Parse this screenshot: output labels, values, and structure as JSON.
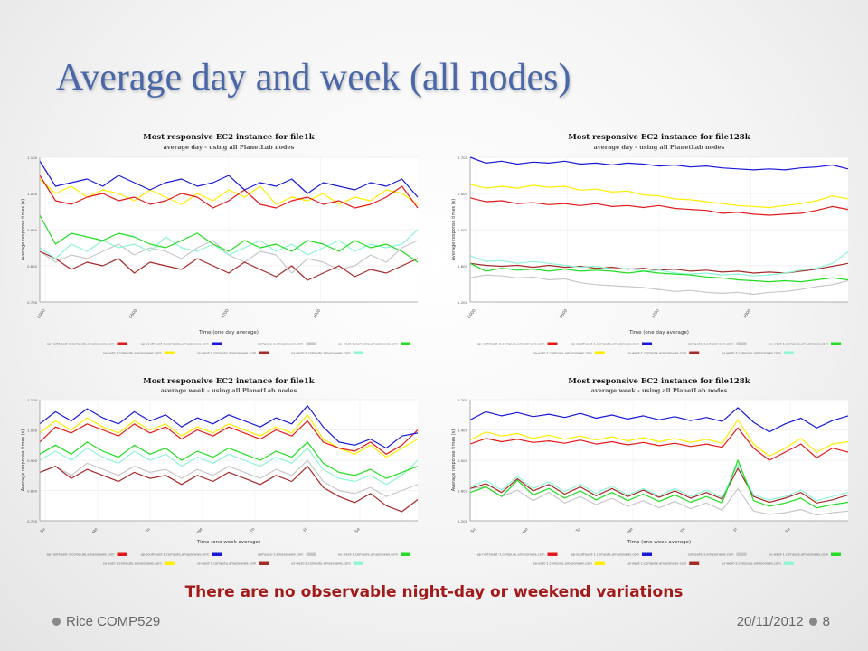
{
  "slide": {
    "title": "Average day and week (all nodes)",
    "note": "There are no observable night-day or weekend variations",
    "footer_left": "Rice COMP529",
    "footer_date": "20/11/2012",
    "page_number": "8"
  },
  "colors": {
    "title": "#4a67a8",
    "note": "#a31a1a",
    "series": [
      "#e31a1c",
      "#1a1ad6",
      "#c8c8c8",
      "#22dd22",
      "#ffee00",
      "#a52a2a",
      "#8ff5d6"
    ]
  },
  "chart_data": [
    {
      "type": "line",
      "title": "Most responsive EC2 instance for file1k",
      "subtitle": "average day - using all PlanetLab nodes",
      "xlabel": "Time (one day average)",
      "ylabel": "Average response times (s)",
      "ylim": [
        0.7,
        1.1
      ],
      "yticks": [
        "1.100",
        "1.000",
        "0.900",
        "0.800",
        "0.700"
      ],
      "xticks": [
        "0000",
        "0600",
        "1200",
        "1800"
      ],
      "grid": true,
      "legend_position": "bottom",
      "series": [
        {
          "name": "ap-northeast-1.compute.amazonaws.com",
          "color": "#e31a1c",
          "values": [
            1.05,
            0.98,
            0.97,
            0.99,
            1.0,
            0.98,
            0.99,
            0.97,
            0.98,
            1.0,
            0.99,
            0.96,
            0.98,
            1.01,
            0.97,
            0.96,
            0.98,
            0.99,
            0.97,
            0.98,
            0.96,
            0.97,
            0.99,
            1.02,
            0.96
          ]
        },
        {
          "name": "ap-southeast-1.compute.amazonaws.com",
          "color": "#1a1ad6",
          "values": [
            1.09,
            1.02,
            1.03,
            1.04,
            1.02,
            1.05,
            1.03,
            1.01,
            1.03,
            1.04,
            1.02,
            1.03,
            1.05,
            1.01,
            1.03,
            1.02,
            1.04,
            1.0,
            1.03,
            1.02,
            1.01,
            1.03,
            1.02,
            1.04,
            0.99
          ]
        },
        {
          "name": "compute-1.amazonaws.com",
          "color": "#c8c8c8",
          "values": [
            0.84,
            0.81,
            0.83,
            0.82,
            0.84,
            0.86,
            0.83,
            0.85,
            0.84,
            0.82,
            0.85,
            0.87,
            0.83,
            0.81,
            0.84,
            0.83,
            0.78,
            0.82,
            0.81,
            0.79,
            0.8,
            0.83,
            0.81,
            0.85,
            0.87
          ]
        },
        {
          "name": "eu-west-1.compute.amazonaws.com",
          "color": "#22dd22",
          "values": [
            0.94,
            0.86,
            0.89,
            0.88,
            0.87,
            0.89,
            0.88,
            0.86,
            0.85,
            0.87,
            0.89,
            0.86,
            0.84,
            0.87,
            0.85,
            0.86,
            0.84,
            0.87,
            0.86,
            0.84,
            0.87,
            0.85,
            0.86,
            0.84,
            0.81
          ]
        },
        {
          "name": "sa-east-1.compute.amazonaws.com",
          "color": "#ffee00",
          "values": [
            1.04,
            1.0,
            1.02,
            0.99,
            1.01,
            1.0,
            0.98,
            1.01,
            0.99,
            0.97,
            1.0,
            0.98,
            1.01,
            0.99,
            1.02,
            0.97,
            0.99,
            0.98,
            1.0,
            0.97,
            0.99,
            0.98,
            1.01,
            1.0,
            0.97
          ]
        },
        {
          "name": "us-west-1.compute.amazonaws.com",
          "color": "#a52a2a",
          "values": [
            0.84,
            0.82,
            0.79,
            0.81,
            0.8,
            0.82,
            0.78,
            0.81,
            0.8,
            0.79,
            0.82,
            0.8,
            0.78,
            0.81,
            0.79,
            0.77,
            0.8,
            0.76,
            0.78,
            0.8,
            0.77,
            0.79,
            0.78,
            0.8,
            0.82
          ]
        },
        {
          "name": "us-west-2.compute.amazonaws.com",
          "color": "#8ff5d6",
          "values": [
            0.85,
            0.82,
            0.86,
            0.84,
            0.87,
            0.85,
            0.86,
            0.84,
            0.88,
            0.85,
            0.84,
            0.86,
            0.83,
            0.85,
            0.87,
            0.84,
            0.86,
            0.83,
            0.85,
            0.87,
            0.84,
            0.86,
            0.85,
            0.86,
            0.9
          ]
        }
      ]
    },
    {
      "type": "line",
      "title": "Most responsive EC2 instance for file128k",
      "subtitle": "average day - using all PlanetLab nodes",
      "xlabel": "Time (one day average)",
      "ylabel": "Average response times (s)",
      "ylim": [
        1.2,
        2.7
      ],
      "yticks": [
        "2.700",
        "2.400",
        "2.000",
        "1.600",
        "1.200"
      ],
      "xticks": [
        "0000",
        "0600",
        "1200",
        "1800"
      ],
      "grid": true,
      "legend_position": "bottom",
      "series": [
        {
          "name": "ap-northeast-1.compute.amazonaws.com",
          "color": "#e31a1c",
          "values": [
            2.28,
            2.24,
            2.25,
            2.22,
            2.23,
            2.21,
            2.22,
            2.2,
            2.22,
            2.19,
            2.2,
            2.18,
            2.2,
            2.17,
            2.16,
            2.15,
            2.12,
            2.13,
            2.11,
            2.1,
            2.11,
            2.12,
            2.15,
            2.19,
            2.16
          ]
        },
        {
          "name": "ap-southeast-1.compute.amazonaws.com",
          "color": "#1a1ad6",
          "values": [
            2.7,
            2.64,
            2.66,
            2.63,
            2.65,
            2.64,
            2.66,
            2.63,
            2.64,
            2.62,
            2.64,
            2.63,
            2.61,
            2.62,
            2.6,
            2.61,
            2.59,
            2.58,
            2.57,
            2.58,
            2.57,
            2.59,
            2.6,
            2.62,
            2.58
          ]
        },
        {
          "name": "compute-1.amazonaws.com",
          "color": "#c8c8c8",
          "values": [
            1.45,
            1.48,
            1.47,
            1.45,
            1.46,
            1.43,
            1.44,
            1.4,
            1.38,
            1.37,
            1.36,
            1.35,
            1.33,
            1.31,
            1.32,
            1.3,
            1.29,
            1.3,
            1.28,
            1.3,
            1.31,
            1.33,
            1.36,
            1.38,
            1.42
          ]
        },
        {
          "name": "eu-west-1.compute.amazonaws.com",
          "color": "#22dd22",
          "values": [
            1.6,
            1.52,
            1.55,
            1.53,
            1.54,
            1.52,
            1.54,
            1.52,
            1.53,
            1.52,
            1.5,
            1.52,
            1.5,
            1.49,
            1.48,
            1.46,
            1.45,
            1.43,
            1.42,
            1.41,
            1.42,
            1.41,
            1.43,
            1.45,
            1.43
          ]
        },
        {
          "name": "sa-east-1.compute.amazonaws.com",
          "color": "#ffee00",
          "values": [
            2.42,
            2.38,
            2.4,
            2.38,
            2.41,
            2.39,
            2.4,
            2.36,
            2.37,
            2.34,
            2.35,
            2.31,
            2.3,
            2.27,
            2.26,
            2.24,
            2.22,
            2.2,
            2.19,
            2.18,
            2.2,
            2.22,
            2.25,
            2.3,
            2.27
          ]
        },
        {
          "name": "us-west-1.compute.amazonaws.com",
          "color": "#a52a2a",
          "values": [
            1.6,
            1.58,
            1.57,
            1.58,
            1.56,
            1.58,
            1.56,
            1.57,
            1.55,
            1.56,
            1.54,
            1.55,
            1.53,
            1.54,
            1.52,
            1.53,
            1.51,
            1.52,
            1.5,
            1.51,
            1.5,
            1.52,
            1.54,
            1.57,
            1.6
          ]
        },
        {
          "name": "us-west-2.compute.amazonaws.com",
          "color": "#8ff5d6",
          "values": [
            1.68,
            1.62,
            1.63,
            1.6,
            1.62,
            1.6,
            1.58,
            1.56,
            1.57,
            1.54,
            1.55,
            1.52,
            1.53,
            1.5,
            1.49,
            1.5,
            1.48,
            1.49,
            1.47,
            1.48,
            1.5,
            1.53,
            1.55,
            1.6,
            1.72
          ]
        }
      ]
    },
    {
      "type": "line",
      "title": "Most responsive EC2 instance for file1k",
      "subtitle": "average week - using all PlanetLab nodes",
      "xlabel": "Time (one week average)",
      "ylabel": "Average response times (s)",
      "ylim": [
        0.7,
        1.1
      ],
      "yticks": [
        "1.100",
        "1.000",
        "0.900",
        "0.800",
        "0.700"
      ],
      "xticks": [
        "Su",
        "Mo",
        "Tu",
        "We",
        "Th",
        "Fr",
        "Sa"
      ],
      "grid": true,
      "legend_position": "bottom",
      "series": [
        {
          "name": "ap-northeast-1.compute.amazonaws.com",
          "color": "#e31a1c",
          "values": [
            0.96,
            1.01,
            0.99,
            1.02,
            1.0,
            0.98,
            1.02,
            0.99,
            1.01,
            0.97,
            1.0,
            0.98,
            1.01,
            0.99,
            0.97,
            1.0,
            0.98,
            1.03,
            0.96,
            0.94,
            0.93,
            0.96,
            0.92,
            0.95,
            1.0
          ]
        },
        {
          "name": "ap-southeast-1.compute.amazonaws.com",
          "color": "#1a1ad6",
          "values": [
            1.02,
            1.06,
            1.03,
            1.07,
            1.04,
            1.02,
            1.06,
            1.03,
            1.05,
            1.01,
            1.04,
            1.02,
            1.05,
            1.03,
            1.01,
            1.04,
            1.02,
            1.08,
            1.01,
            0.96,
            0.95,
            0.97,
            0.94,
            0.98,
            0.99
          ]
        },
        {
          "name": "compute-1.amazonaws.com",
          "color": "#c8c8c8",
          "values": [
            0.86,
            0.88,
            0.85,
            0.89,
            0.87,
            0.85,
            0.88,
            0.86,
            0.87,
            0.84,
            0.87,
            0.85,
            0.88,
            0.86,
            0.84,
            0.87,
            0.85,
            0.9,
            0.83,
            0.8,
            0.79,
            0.81,
            0.78,
            0.8,
            0.82
          ]
        },
        {
          "name": "eu-west-1.compute.amazonaws.com",
          "color": "#22dd22",
          "values": [
            0.92,
            0.95,
            0.92,
            0.96,
            0.93,
            0.91,
            0.95,
            0.92,
            0.94,
            0.9,
            0.93,
            0.91,
            0.94,
            0.92,
            0.9,
            0.93,
            0.91,
            0.96,
            0.89,
            0.86,
            0.85,
            0.87,
            0.84,
            0.86,
            0.88
          ]
        },
        {
          "name": "sa-east-1.compute.amazonaws.com",
          "color": "#ffee00",
          "values": [
            0.99,
            1.03,
            1.0,
            1.04,
            1.01,
            0.99,
            1.03,
            1.0,
            1.02,
            0.98,
            1.01,
            0.99,
            1.02,
            1.0,
            0.98,
            1.01,
            0.99,
            1.05,
            0.97,
            0.94,
            0.92,
            0.95,
            0.91,
            0.94,
            0.97
          ]
        },
        {
          "name": "us-west-1.compute.amazonaws.com",
          "color": "#a52a2a",
          "values": [
            0.86,
            0.88,
            0.84,
            0.87,
            0.85,
            0.83,
            0.86,
            0.84,
            0.85,
            0.82,
            0.85,
            0.83,
            0.86,
            0.84,
            0.82,
            0.85,
            0.83,
            0.88,
            0.81,
            0.78,
            0.76,
            0.79,
            0.75,
            0.73,
            0.77
          ]
        },
        {
          "name": "us-west-2.compute.amazonaws.com",
          "color": "#8ff5d6",
          "values": [
            0.9,
            0.93,
            0.9,
            0.94,
            0.91,
            0.89,
            0.93,
            0.9,
            0.92,
            0.88,
            0.91,
            0.89,
            0.92,
            0.9,
            0.88,
            0.91,
            0.89,
            0.94,
            0.87,
            0.84,
            0.83,
            0.85,
            0.82,
            0.85,
            0.9
          ]
        }
      ]
    },
    {
      "type": "line",
      "title": "Most responsive EC2 instance for file128k",
      "subtitle": "average week - using all PlanetLab nodes",
      "xlabel": "Time (one week average)",
      "ylabel": "Average response times (s)",
      "ylim": [
        1.2,
        2.7
      ],
      "yticks": [
        "2.700",
        "2.400",
        "2.000",
        "1.600",
        "1.200"
      ],
      "xticks": [
        "Su",
        "Mo",
        "Tu",
        "We",
        "Th",
        "Fr",
        "Sa"
      ],
      "grid": true,
      "legend_position": "bottom",
      "series": [
        {
          "name": "ap-northeast-1.compute.amazonaws.com",
          "color": "#e31a1c",
          "values": [
            2.15,
            2.22,
            2.18,
            2.21,
            2.17,
            2.19,
            2.16,
            2.2,
            2.15,
            2.18,
            2.14,
            2.17,
            2.13,
            2.16,
            2.12,
            2.15,
            2.11,
            2.35,
            2.1,
            1.95,
            2.05,
            2.15,
            1.98,
            2.1,
            2.05
          ]
        },
        {
          "name": "ap-southeast-1.compute.amazonaws.com",
          "color": "#1a1ad6",
          "values": [
            2.45,
            2.55,
            2.5,
            2.54,
            2.49,
            2.52,
            2.48,
            2.53,
            2.47,
            2.51,
            2.46,
            2.5,
            2.45,
            2.49,
            2.44,
            2.48,
            2.43,
            2.6,
            2.42,
            2.3,
            2.4,
            2.47,
            2.35,
            2.44,
            2.5
          ]
        },
        {
          "name": "compute-1.amazonaws.com",
          "color": "#c8c8c8",
          "values": [
            1.6,
            1.62,
            1.5,
            1.58,
            1.45,
            1.55,
            1.42,
            1.5,
            1.4,
            1.48,
            1.38,
            1.45,
            1.36,
            1.44,
            1.35,
            1.42,
            1.33,
            1.6,
            1.32,
            1.28,
            1.3,
            1.34,
            1.27,
            1.3,
            1.32
          ]
        },
        {
          "name": "eu-west-1.compute.amazonaws.com",
          "color": "#22dd22",
          "values": [
            1.55,
            1.62,
            1.5,
            1.7,
            1.52,
            1.6,
            1.48,
            1.57,
            1.46,
            1.55,
            1.45,
            1.53,
            1.44,
            1.52,
            1.43,
            1.5,
            1.42,
            1.95,
            1.45,
            1.38,
            1.42,
            1.48,
            1.36,
            1.4,
            1.43
          ]
        },
        {
          "name": "sa-east-1.compute.amazonaws.com",
          "color": "#ffee00",
          "values": [
            2.2,
            2.3,
            2.25,
            2.28,
            2.22,
            2.26,
            2.21,
            2.25,
            2.2,
            2.24,
            2.19,
            2.23,
            2.18,
            2.22,
            2.17,
            2.21,
            2.16,
            2.45,
            2.15,
            2.0,
            2.1,
            2.22,
            2.05,
            2.15,
            2.18
          ]
        },
        {
          "name": "us-west-1.compute.amazonaws.com",
          "color": "#a52a2a",
          "values": [
            1.6,
            1.66,
            1.55,
            1.72,
            1.57,
            1.65,
            1.53,
            1.62,
            1.51,
            1.6,
            1.5,
            1.58,
            1.49,
            1.57,
            1.48,
            1.55,
            1.47,
            1.85,
            1.5,
            1.43,
            1.48,
            1.55,
            1.42,
            1.46,
            1.52
          ]
        },
        {
          "name": "us-west-2.compute.amazonaws.com",
          "color": "#8ff5d6",
          "values": [
            1.62,
            1.7,
            1.58,
            1.75,
            1.6,
            1.68,
            1.56,
            1.65,
            1.54,
            1.63,
            1.52,
            1.6,
            1.51,
            1.6,
            1.5,
            1.58,
            1.49,
            1.9,
            1.52,
            1.46,
            1.5,
            1.58,
            1.45,
            1.5,
            1.55
          ]
        }
      ]
    }
  ]
}
